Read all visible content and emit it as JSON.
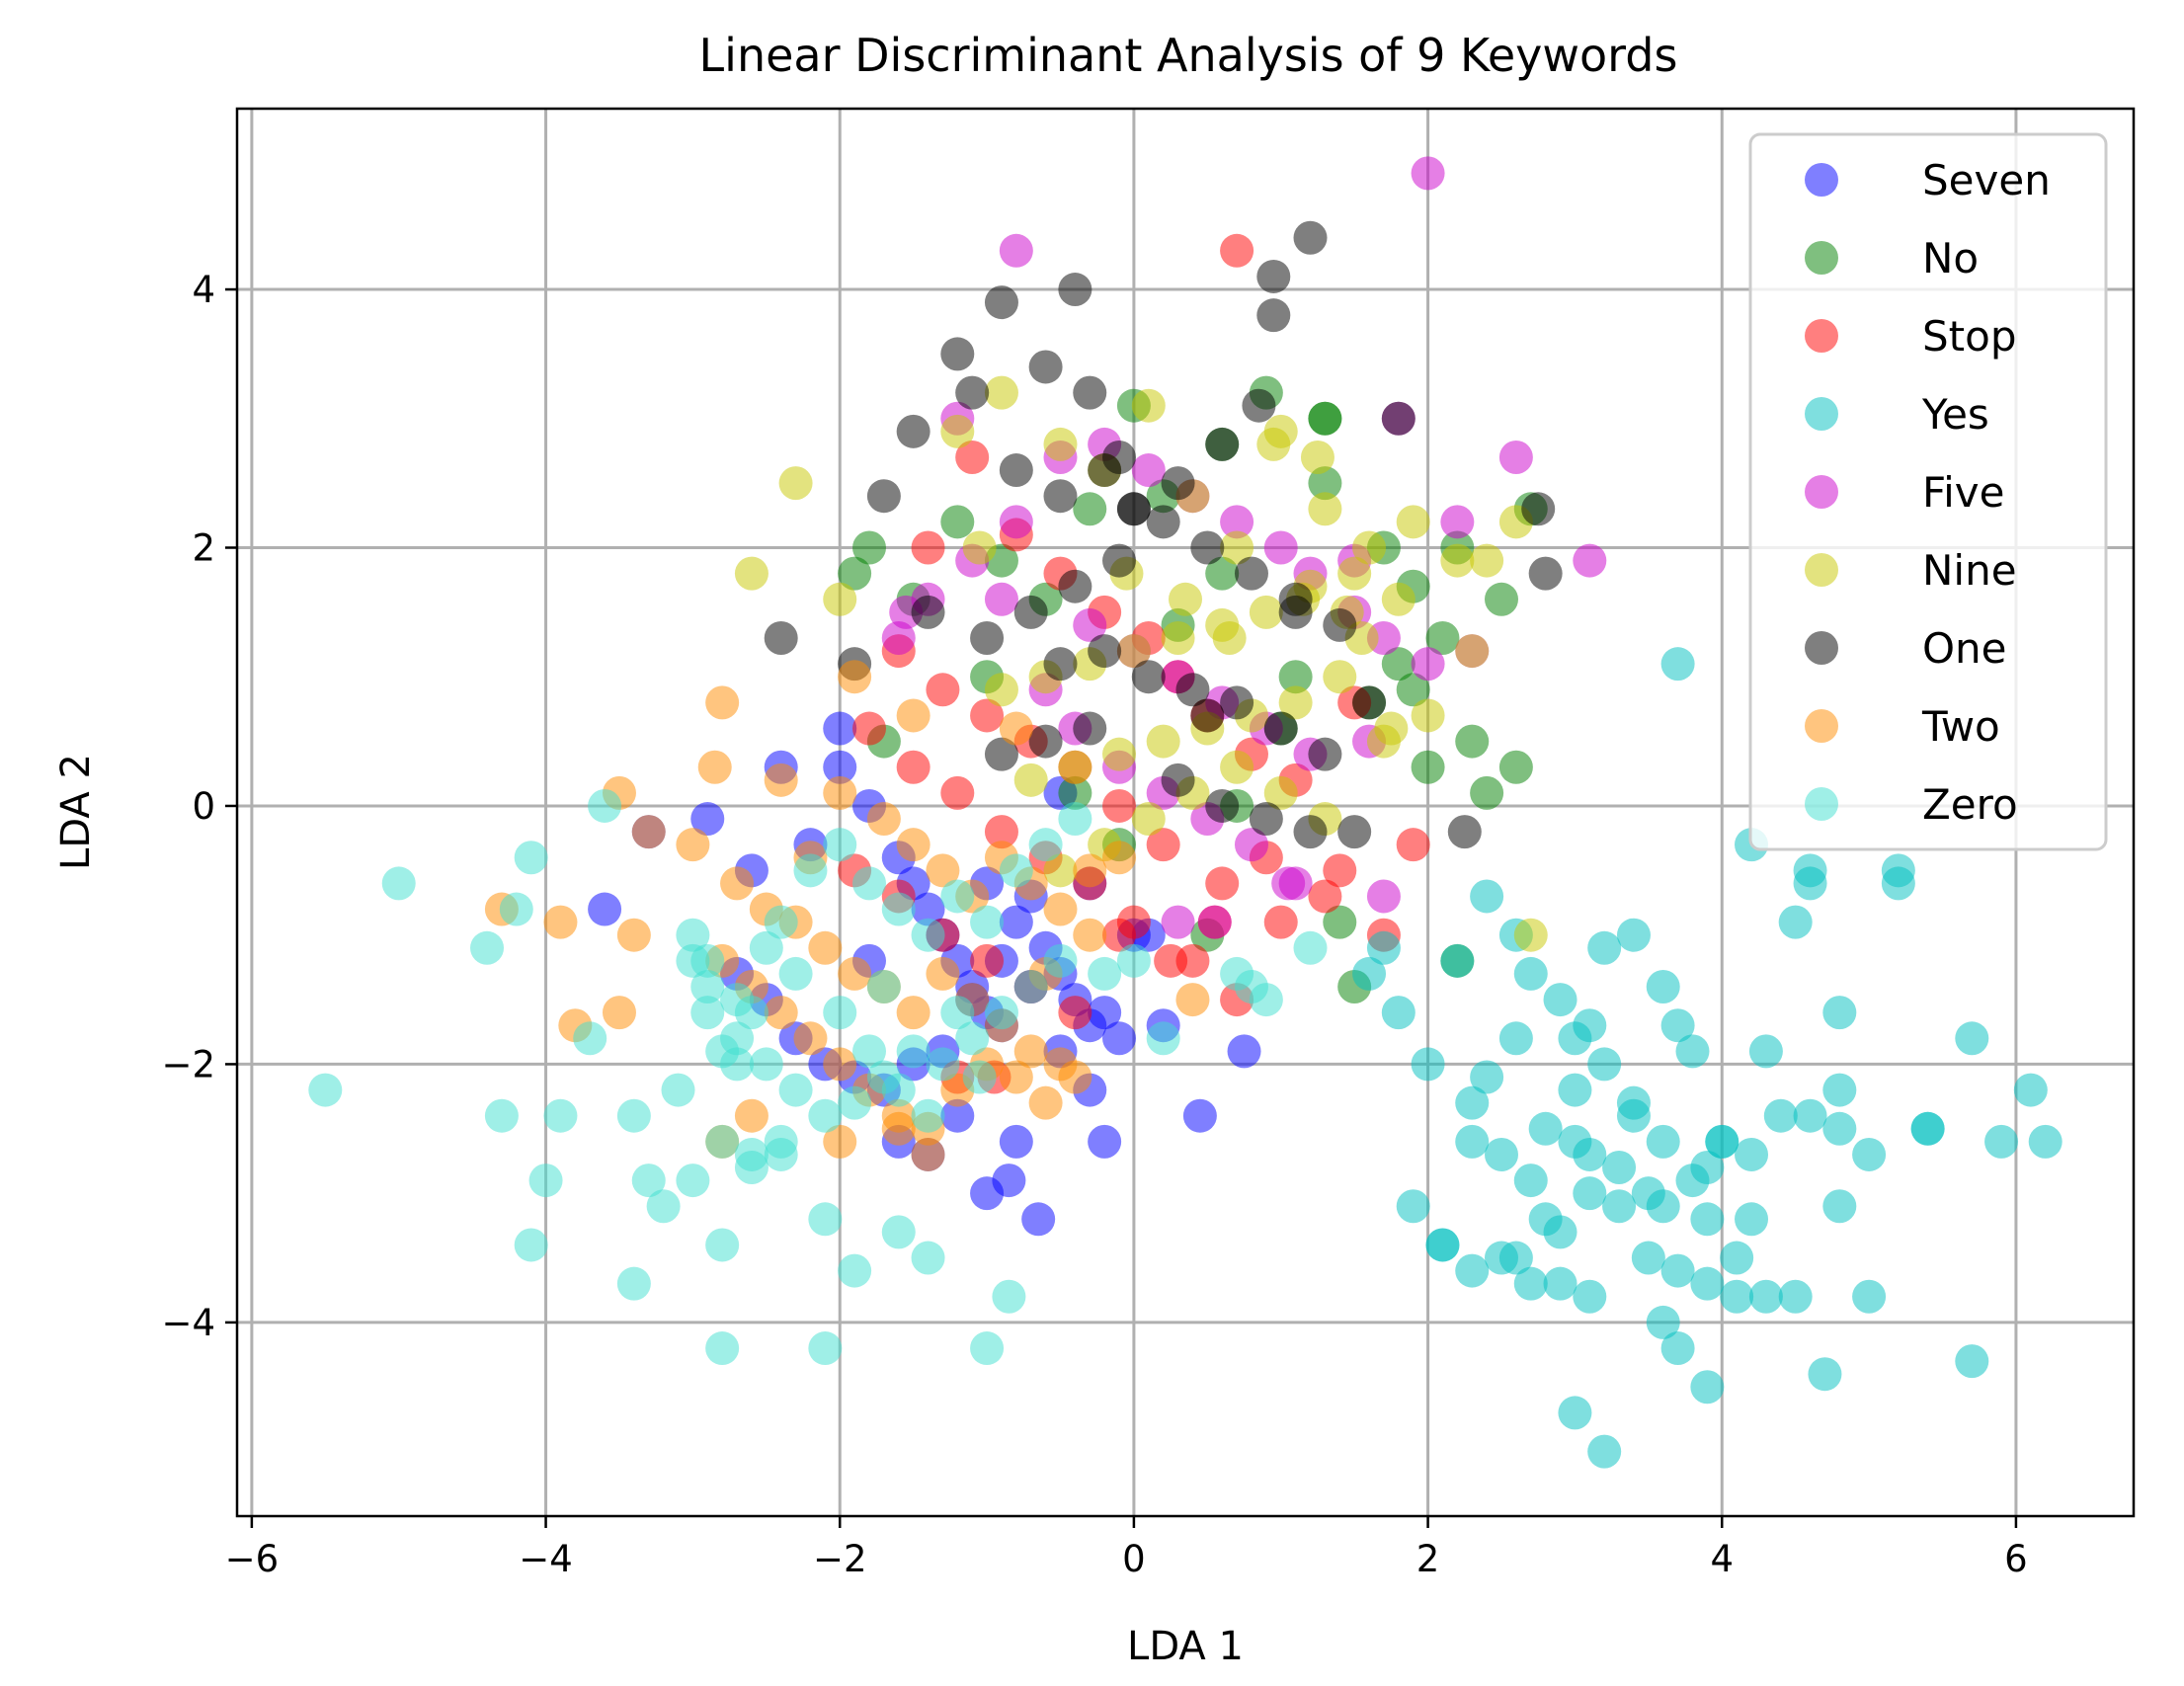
{
  "chart_data": {
    "type": "scatter",
    "title": "Linear Discriminant Analysis of 9 Keywords",
    "xlabel": "LDA 1",
    "ylabel": "LDA 2",
    "xlim": [
      -6.1,
      6.8
    ],
    "ylim": [
      -5.5,
      5.4
    ],
    "xticks": [
      -6,
      -4,
      -2,
      0,
      2,
      4,
      6
    ],
    "yticks": [
      -4,
      -2,
      0,
      2,
      4
    ],
    "xtick_labels": [
      "−6",
      "−4",
      "−2",
      "0",
      "2",
      "4",
      "6"
    ],
    "ytick_labels": [
      "−4",
      "−2",
      "0",
      "2",
      "4"
    ],
    "grid": true,
    "legend_position": "top-right",
    "series": [
      {
        "name": "Seven",
        "color": "#0000ff",
        "x": [
          -2.4,
          -3.3,
          -3.6,
          -2.9,
          -2.6,
          -2.2,
          -2.0,
          -1.8,
          -1.6,
          -1.5,
          -1.4,
          -1.3,
          -1.2,
          -1.1,
          -1.0,
          -0.9,
          -0.8,
          -0.7,
          -0.6,
          -0.5,
          -0.4,
          -0.3,
          -0.2,
          -0.1,
          0.0,
          -2.7,
          -2.5,
          -2.3,
          -2.1,
          -1.9,
          -1.7,
          -1.5,
          -1.3,
          -1.1,
          -0.9,
          -0.7,
          -0.5,
          -0.3,
          -1.0,
          -0.85,
          -0.65,
          -0.2,
          0.2,
          0.45,
          0.75,
          -1.6,
          -1.4,
          -1.2,
          -2.0,
          -0.8,
          -1.8,
          -1.0,
          -0.5,
          -0.3,
          0.1
        ],
        "y": [
          0.3,
          -0.2,
          -0.8,
          -0.1,
          -0.5,
          -0.3,
          0.3,
          0.0,
          -0.4,
          -0.6,
          -0.8,
          -1.0,
          -1.2,
          -1.4,
          -1.6,
          -1.2,
          -0.9,
          -0.7,
          -1.1,
          -1.3,
          -1.5,
          -1.7,
          -1.6,
          -1.8,
          -1.0,
          -1.3,
          -1.5,
          -1.8,
          -2.0,
          -2.1,
          -2.2,
          -2.0,
          -1.9,
          -1.5,
          -1.7,
          -1.4,
          -1.9,
          -2.2,
          -3.0,
          -2.9,
          -3.2,
          -2.6,
          -1.7,
          -2.4,
          -1.9,
          -2.6,
          -2.7,
          -2.4,
          0.6,
          -2.6,
          -1.2,
          -0.6,
          0.1,
          -0.6,
          -1.0
        ]
      },
      {
        "name": "No",
        "color": "#008000",
        "x": [
          0.9,
          1.3,
          1.3,
          1.7,
          1.9,
          2.1,
          2.3,
          2.4,
          2.6,
          2.7,
          2.5,
          2.2,
          1.8,
          1.6,
          1.5,
          1.4,
          1.0,
          0.6,
          0.3,
          0.0,
          -0.3,
          -0.6,
          -0.9,
          -1.2,
          -1.5,
          -1.8,
          -1.9,
          -1.7,
          2.2,
          1.3,
          0.6,
          0.2,
          -0.4,
          -0.1,
          0.7,
          1.1,
          1.9,
          2.0,
          0.5,
          -1.0
        ],
        "y": [
          3.2,
          3.0,
          2.5,
          2.0,
          1.7,
          1.3,
          0.5,
          0.1,
          0.3,
          2.3,
          1.6,
          -1.2,
          1.1,
          0.8,
          -1.4,
          -0.9,
          0.6,
          1.8,
          1.4,
          3.1,
          2.3,
          1.6,
          1.9,
          2.2,
          1.6,
          2.0,
          1.8,
          0.5,
          2.0,
          3.0,
          2.8,
          2.4,
          0.1,
          -0.3,
          0.0,
          1.0,
          0.9,
          0.3,
          -1.0,
          1.0
        ]
      },
      {
        "name": "Stop",
        "color": "#ff0000",
        "x": [
          0.7,
          -1.1,
          -1.4,
          -0.8,
          -0.5,
          -0.2,
          0.1,
          0.3,
          0.5,
          0.8,
          1.1,
          1.4,
          1.7,
          1.9,
          -1.6,
          -1.3,
          -1.0,
          -0.7,
          -0.4,
          -0.1,
          0.2,
          0.6,
          1.0,
          1.3,
          -1.8,
          -1.5,
          -1.2,
          -0.9,
          -0.6,
          -0.3,
          0.0,
          0.4,
          0.7,
          -1.9,
          -1.6,
          -1.3,
          -1.0,
          -0.7,
          -0.4,
          -0.1,
          0.25,
          0.55,
          0.9,
          1.5,
          -1.2,
          -0.95
        ],
        "y": [
          4.3,
          2.7,
          2.0,
          2.1,
          1.8,
          1.5,
          1.3,
          1.0,
          0.7,
          0.4,
          0.2,
          -0.5,
          -1.0,
          -0.3,
          1.2,
          0.9,
          0.7,
          0.5,
          0.3,
          0.0,
          -0.3,
          -0.6,
          -0.9,
          -0.7,
          0.6,
          0.3,
          0.1,
          -0.2,
          -0.4,
          -0.6,
          -0.9,
          -1.2,
          -1.5,
          -0.5,
          -0.7,
          -1.0,
          -1.2,
          -1.4,
          -1.6,
          -1.0,
          -1.2,
          -0.9,
          -0.4,
          0.8,
          -2.1,
          -2.1
        ]
      },
      {
        "name": "Yes",
        "color": "#00c0c0",
        "x": [
          2.4,
          2.6,
          2.7,
          2.9,
          3.1,
          3.2,
          3.4,
          3.6,
          3.7,
          3.8,
          4.0,
          4.2,
          4.3,
          4.5,
          4.6,
          4.8,
          5.0,
          5.2,
          5.4,
          5.7,
          5.9,
          6.1,
          6.2,
          2.2,
          2.4,
          2.6,
          2.8,
          3.0,
          3.2,
          3.4,
          3.6,
          3.8,
          4.0,
          4.2,
          4.4,
          4.6,
          4.8,
          5.0,
          2.3,
          2.5,
          2.7,
          2.9,
          3.1,
          3.3,
          3.5,
          3.7,
          3.9,
          4.1,
          4.3,
          4.5,
          2.1,
          2.3,
          2.5,
          2.7,
          2.9,
          3.1,
          3.3,
          3.5,
          3.7,
          3.9,
          4.1,
          3.0,
          3.2,
          3.6,
          4.7,
          5.7,
          2.8,
          3.0,
          3.6,
          3.9,
          1.6,
          1.7,
          1.9,
          2.0,
          2.3,
          2.1,
          3.7,
          4.2,
          4.6,
          5.2,
          5.4,
          4.8,
          3.4,
          3.1,
          3.0,
          2.6,
          3.9,
          4.8,
          1.8
        ],
        "y": [
          -0.7,
          -1.0,
          -1.3,
          -1.5,
          -1.7,
          -1.1,
          -1.0,
          -1.4,
          -1.7,
          -1.9,
          -2.6,
          -2.7,
          -1.9,
          -0.9,
          -0.5,
          -1.6,
          -2.7,
          -0.5,
          -2.5,
          -4.3,
          -2.6,
          -2.2,
          -2.6,
          -1.2,
          -2.1,
          -1.8,
          -2.5,
          -2.2,
          -2.0,
          -2.4,
          -2.6,
          -2.9,
          -2.6,
          -3.2,
          -2.4,
          -2.4,
          -2.5,
          -3.8,
          -2.6,
          -2.7,
          -2.9,
          -3.3,
          -3.0,
          -2.8,
          -3.5,
          -3.6,
          -3.7,
          -3.8,
          -3.8,
          -3.8,
          -3.4,
          -3.6,
          -3.5,
          -3.7,
          -3.7,
          -3.8,
          -3.1,
          -3.0,
          -4.2,
          -4.5,
          -3.5,
          -4.7,
          -5.0,
          -4.0,
          -4.4,
          -1.8,
          -3.2,
          -2.6,
          -3.1,
          -3.2,
          -1.3,
          -1.1,
          -3.1,
          -2.0,
          -2.3,
          -3.4,
          1.1,
          -0.3,
          -0.6,
          -0.6,
          -2.5,
          -3.1,
          -2.3,
          -2.7,
          -1.8,
          -3.5,
          -2.8,
          -2.2,
          -1.6
        ]
      },
      {
        "name": "Five",
        "color": "#cc00cc",
        "x": [
          2.0,
          -0.8,
          1.8,
          2.6,
          3.1,
          2.2,
          2.0,
          1.7,
          1.5,
          1.2,
          1.0,
          0.7,
          0.4,
          0.1,
          -0.2,
          -0.5,
          -0.8,
          -1.1,
          -1.4,
          -1.6,
          -0.3,
          0.0,
          0.3,
          0.6,
          0.9,
          1.2,
          -0.6,
          -0.4,
          -0.1,
          0.2,
          0.5,
          0.8,
          1.1,
          -1.2,
          -0.9,
          1.5,
          1.7,
          2.3,
          0.3,
          0.55,
          1.05,
          1.6,
          -1.55
        ],
        "y": [
          4.9,
          4.3,
          3.0,
          2.7,
          1.9,
          2.2,
          1.1,
          1.3,
          1.5,
          1.8,
          2.0,
          2.2,
          2.4,
          2.6,
          2.8,
          2.7,
          2.2,
          1.9,
          1.6,
          1.3,
          1.4,
          1.2,
          1.0,
          0.8,
          0.6,
          0.4,
          0.9,
          0.6,
          0.3,
          0.1,
          -0.1,
          -0.3,
          -0.6,
          3.0,
          1.6,
          1.9,
          -0.7,
          1.2,
          -0.9,
          -0.9,
          -0.6,
          0.5,
          1.5
        ]
      },
      {
        "name": "Nine",
        "color": "#c8c800",
        "x": [
          -2.6,
          -2.3,
          -2.0,
          -0.9,
          -1.2,
          -0.5,
          -0.2,
          0.1,
          0.4,
          0.7,
          1.0,
          1.3,
          1.6,
          1.9,
          2.2,
          2.4,
          2.6,
          1.8,
          1.5,
          1.2,
          0.9,
          0.6,
          0.3,
          0.0,
          -0.3,
          -0.6,
          -0.9,
          1.4,
          1.1,
          0.8,
          0.5,
          0.2,
          -0.1,
          -0.4,
          -0.7,
          1.7,
          2.0,
          2.3,
          1.3,
          1.0,
          0.7,
          0.4,
          0.1,
          -0.2,
          -0.5,
          2.7,
          0.95,
          1.25,
          1.55,
          1.75,
          -0.05,
          0.35,
          0.65,
          1.15,
          1.45,
          -1.05
        ],
        "y": [
          1.8,
          2.5,
          1.6,
          3.2,
          2.9,
          2.8,
          2.6,
          3.1,
          2.4,
          2.0,
          2.9,
          2.3,
          2.0,
          2.2,
          1.9,
          1.9,
          2.2,
          1.6,
          1.8,
          1.7,
          1.5,
          1.4,
          1.3,
          1.2,
          1.1,
          1.0,
          0.9,
          1.0,
          0.8,
          0.7,
          0.6,
          0.5,
          0.4,
          0.3,
          0.2,
          0.5,
          0.7,
          1.2,
          -0.1,
          0.1,
          0.3,
          0.1,
          -0.1,
          -0.3,
          -0.5,
          -1.0,
          2.8,
          2.7,
          1.3,
          0.6,
          1.8,
          1.6,
          1.3,
          1.6,
          1.5,
          2.0
        ]
      },
      {
        "name": "One",
        "color": "#000000",
        "x": [
          1.2,
          0.95,
          0.95,
          -0.9,
          -0.4,
          -1.2,
          -0.6,
          -0.3,
          -1.5,
          -1.7,
          -1.9,
          -2.4,
          1.8,
          2.8,
          2.25,
          0.85,
          0.6,
          0.3,
          0.0,
          -0.2,
          -0.5,
          -0.8,
          -1.1,
          -1.4,
          0.2,
          0.5,
          0.8,
          1.1,
          1.4,
          -0.1,
          -0.4,
          -0.7,
          -1.0,
          0.1,
          0.4,
          0.7,
          1.0,
          1.3,
          -0.3,
          -0.6,
          -0.9,
          0.3,
          0.6,
          0.9,
          1.2,
          1.5,
          -0.2,
          -0.5,
          0.5,
          1.1,
          -0.1,
          0.0,
          1.6,
          2.75
        ],
        "y": [
          4.4,
          4.1,
          3.8,
          3.9,
          4.0,
          3.5,
          3.4,
          3.2,
          2.9,
          2.4,
          1.1,
          1.3,
          3.0,
          1.8,
          -0.2,
          3.1,
          2.8,
          2.5,
          2.3,
          2.6,
          2.4,
          2.6,
          3.2,
          1.5,
          2.2,
          2.0,
          1.8,
          1.6,
          1.4,
          1.9,
          1.7,
          1.5,
          1.3,
          1.0,
          0.9,
          0.8,
          0.6,
          0.4,
          0.6,
          0.5,
          0.4,
          0.2,
          0.0,
          -0.1,
          -0.2,
          -0.2,
          1.2,
          1.1,
          0.7,
          1.5,
          2.7,
          2.3,
          0.8,
          2.3
        ]
      },
      {
        "name": "Two",
        "color": "#ff8c00",
        "x": [
          -2.8,
          -2.85,
          -2.4,
          -2.0,
          -1.7,
          -1.5,
          -1.3,
          -1.1,
          -0.9,
          -0.7,
          -0.5,
          -0.3,
          -3.5,
          -3.4,
          -3.9,
          -4.3,
          -3.3,
          -3.0,
          -2.7,
          -2.5,
          -2.3,
          -2.1,
          -1.9,
          -1.7,
          -1.5,
          -1.3,
          -1.1,
          -0.9,
          -0.7,
          -0.5,
          -0.3,
          -0.1,
          -2.8,
          -2.6,
          -2.4,
          -2.2,
          -2.0,
          -1.8,
          -1.6,
          -1.4,
          -1.2,
          -1.0,
          -0.8,
          -0.6,
          -0.4,
          -3.8,
          -3.5,
          -2.8,
          -2.6,
          -2.0,
          -1.6,
          -1.4,
          -0.6,
          0.4,
          -1.9,
          -2.2,
          -0.8,
          -1.5
        ],
        "y": [
          0.8,
          0.3,
          0.2,
          0.1,
          -0.1,
          -0.3,
          -0.5,
          -0.7,
          -0.4,
          -0.6,
          -0.8,
          -0.5,
          0.1,
          -1.0,
          -0.9,
          -0.8,
          -0.2,
          -0.3,
          -0.6,
          -0.8,
          -0.9,
          -1.1,
          -1.3,
          -1.4,
          -1.6,
          -1.3,
          -1.5,
          -1.7,
          -1.9,
          -2.0,
          -1.0,
          -0.4,
          -1.2,
          -1.4,
          -1.6,
          -1.8,
          -2.0,
          -2.2,
          -2.4,
          -2.5,
          -2.2,
          -2.0,
          -2.1,
          -2.3,
          -2.1,
          -1.7,
          -1.6,
          -2.6,
          -2.4,
          -2.6,
          -2.5,
          -2.7,
          -1.3,
          -1.5,
          1.0,
          -0.4,
          0.6,
          0.7
        ]
      },
      {
        "name": "Zero",
        "color": "#40e0d0",
        "x": [
          -5.5,
          -5.0,
          -3.6,
          -4.1,
          -4.4,
          -4.2,
          -3.7,
          -4.3,
          -4.0,
          -3.9,
          -4.1,
          -3.4,
          -3.2,
          -3.0,
          -2.8,
          -2.8,
          -2.6,
          -2.4,
          -2.1,
          -1.9,
          -1.6,
          -1.4,
          -1.2,
          -1.0,
          -2.8,
          -2.1,
          -1.7,
          -1.4,
          -0.85,
          -1.05,
          -3.0,
          -2.9,
          -2.7,
          -2.5,
          -2.3,
          -2.0,
          -1.8,
          -1.6,
          -1.3,
          -1.1,
          -0.9,
          -0.7,
          -0.5,
          0.2,
          0.7,
          0.8,
          0.9,
          1.2,
          -2.9,
          -2.7,
          -2.5,
          -2.3,
          -2.1,
          -1.9,
          -1.7,
          -1.5,
          -3.4,
          -3.1,
          -2.7,
          -3.3,
          -2.9,
          -2.6,
          -2.4,
          -2.2,
          -2.0,
          -1.8,
          -1.6,
          -1.4,
          -1.2,
          -1.0,
          -0.8,
          -0.6,
          -0.4,
          -0.2,
          0.0,
          -2.4,
          -2.8,
          -3.0,
          -2.6
        ],
        "y": [
          -2.2,
          -0.6,
          0.0,
          -0.4,
          -1.1,
          -0.8,
          -1.8,
          -2.4,
          -2.9,
          -2.4,
          -3.4,
          -3.7,
          -3.1,
          -2.9,
          -3.4,
          -4.2,
          -2.7,
          -2.6,
          -3.2,
          -3.6,
          -3.3,
          -3.5,
          -1.6,
          -4.2,
          -1.9,
          -4.2,
          -1.4,
          -2.4,
          -3.8,
          -2.1,
          -1.0,
          -1.2,
          -1.5,
          -1.1,
          -1.3,
          -1.6,
          -1.9,
          -2.2,
          -2.0,
          -1.8,
          -1.6,
          -1.4,
          -1.2,
          -1.8,
          -1.3,
          -1.4,
          -1.5,
          -1.1,
          -1.6,
          -1.8,
          -2.0,
          -2.2,
          -2.4,
          -2.3,
          -2.1,
          -1.9,
          -2.4,
          -2.2,
          -2.0,
          -2.9,
          -1.4,
          -1.6,
          -0.9,
          -0.5,
          -0.3,
          -0.6,
          -0.8,
          -1.0,
          -0.7,
          -0.9,
          -0.5,
          -0.3,
          -0.1,
          -1.3,
          -1.2,
          -2.7,
          -2.6,
          -1.2,
          -2.8
        ]
      }
    ]
  }
}
